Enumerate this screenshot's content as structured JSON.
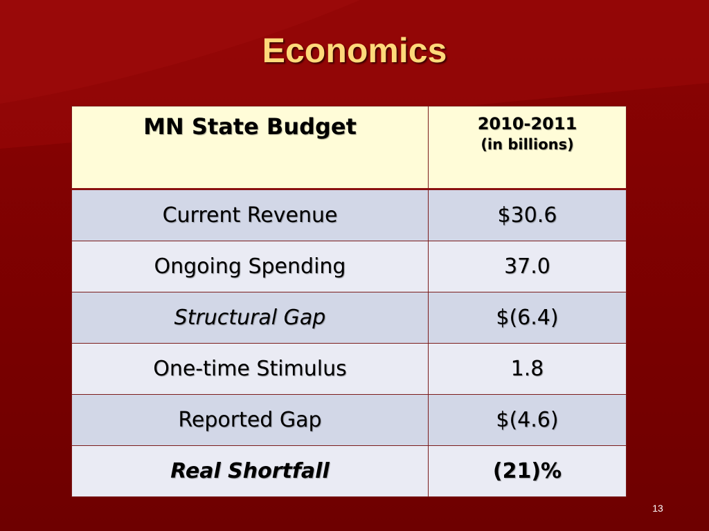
{
  "slide": {
    "title": "Economics",
    "page_number": "13"
  },
  "table": {
    "header": {
      "label": "MN State Budget",
      "period": "2010-2011",
      "unit": "(in billions)"
    },
    "rows": [
      {
        "label": "Current Revenue",
        "value": "$30.6"
      },
      {
        "label": "Ongoing Spending",
        "value": "37.0"
      },
      {
        "label": "Structural Gap",
        "value": "$(6.4)"
      },
      {
        "label": "One-time Stimulus",
        "value": "1.8"
      },
      {
        "label": "Reported Gap",
        "value": "$(4.6)"
      },
      {
        "label": "Real Shortfall",
        "value": "(21)%"
      }
    ]
  },
  "colors": {
    "background": "#7a0000",
    "title": "#ffd97a",
    "header_fill": "#fffcd8",
    "row_dark": "#d2d7e7",
    "row_light": "#eaebf4",
    "highlight": "#c00000"
  }
}
